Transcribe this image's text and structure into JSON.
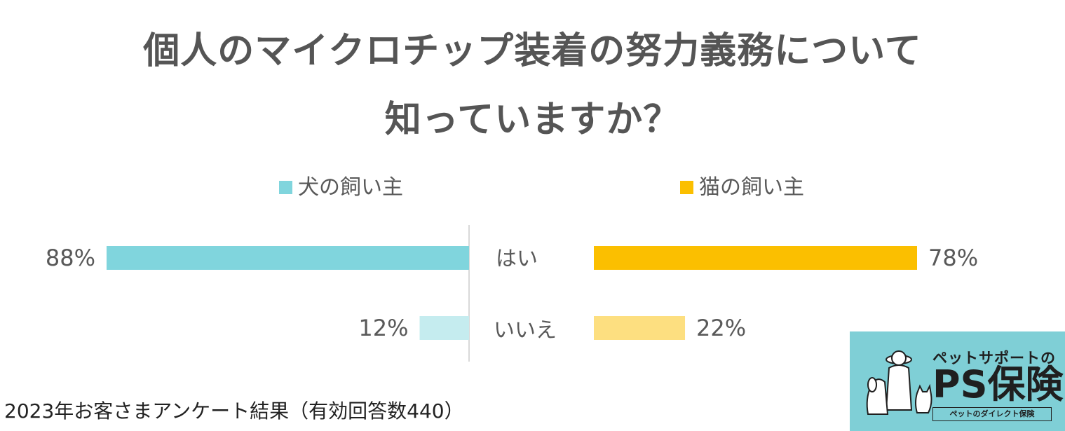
{
  "title": {
    "line1": "個人のマイクロチップ装着の努力義務について",
    "line2": "知っていますか？"
  },
  "legend": {
    "dog": "犬の飼い主",
    "cat": "猫の飼い主"
  },
  "colors": {
    "dog_yes": "#80d5dd",
    "dog_no": "#c5ecef",
    "cat_yes": "#fbbf00",
    "cat_no": "#fddf80",
    "divider": "#d9d9d9",
    "logo_bg": "#7fcfd6"
  },
  "chart_data": {
    "type": "bar",
    "orientation": "horizontal-butterfly",
    "categories": [
      "はい",
      "いいえ"
    ],
    "series": [
      {
        "name": "犬の飼い主",
        "values": [
          88,
          12
        ],
        "labels": [
          "88%",
          "12%"
        ]
      },
      {
        "name": "猫の飼い主",
        "values": [
          78,
          22
        ],
        "labels": [
          "78%",
          "22%"
        ]
      }
    ],
    "unit": "%",
    "xlim": [
      0,
      100
    ],
    "legend_position": "top"
  },
  "footer": "2023年お客さまアンケート結果（有効回答数440）",
  "logo": {
    "subtitle": "ペットサポートの",
    "name": "PS保険",
    "tagline": "ペットのダイレクト保険",
    "icon": "pet-owner-with-dog-and-cat-illustration"
  }
}
